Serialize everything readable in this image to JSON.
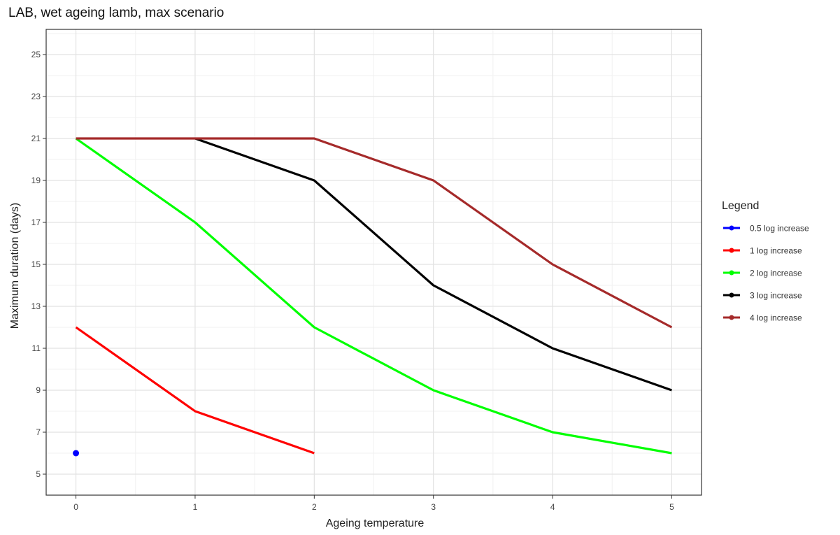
{
  "chart_data": {
    "type": "line",
    "title": "LAB, wet ageing lamb, max scenario",
    "xlabel": "Ageing temperature",
    "ylabel": "Maximum duration (days)",
    "xlim": [
      -0.25,
      5.25
    ],
    "ylim": [
      4.0,
      26.2
    ],
    "x_ticks": [
      0,
      1,
      2,
      3,
      4,
      5
    ],
    "y_ticks": [
      5,
      7,
      9,
      11,
      13,
      15,
      17,
      19,
      21,
      23,
      25
    ],
    "grid": true,
    "legend": {
      "title": "Legend",
      "position": "right"
    },
    "series": [
      {
        "name": "0.5 log increase",
        "color": "#0000ff",
        "points": [
          [
            0,
            6
          ]
        ]
      },
      {
        "name": "1 log increase",
        "color": "#ff0000",
        "points": [
          [
            0,
            12
          ],
          [
            1,
            8
          ],
          [
            2,
            6
          ]
        ]
      },
      {
        "name": "2 log increase",
        "color": "#00ff00",
        "points": [
          [
            0,
            21
          ],
          [
            1,
            17
          ],
          [
            2,
            12
          ],
          [
            3,
            9
          ],
          [
            4,
            7
          ],
          [
            5,
            6
          ]
        ]
      },
      {
        "name": "3 log increase",
        "color": "#000000",
        "points": [
          [
            1,
            21
          ],
          [
            2,
            19
          ],
          [
            3,
            14
          ],
          [
            4,
            11
          ],
          [
            5,
            9
          ]
        ]
      },
      {
        "name": "4 log increase",
        "color": "#a52a2a",
        "points": [
          [
            0,
            21
          ],
          [
            1,
            21
          ],
          [
            2,
            21
          ],
          [
            3,
            19
          ],
          [
            4,
            15
          ],
          [
            5,
            12
          ]
        ]
      }
    ]
  }
}
